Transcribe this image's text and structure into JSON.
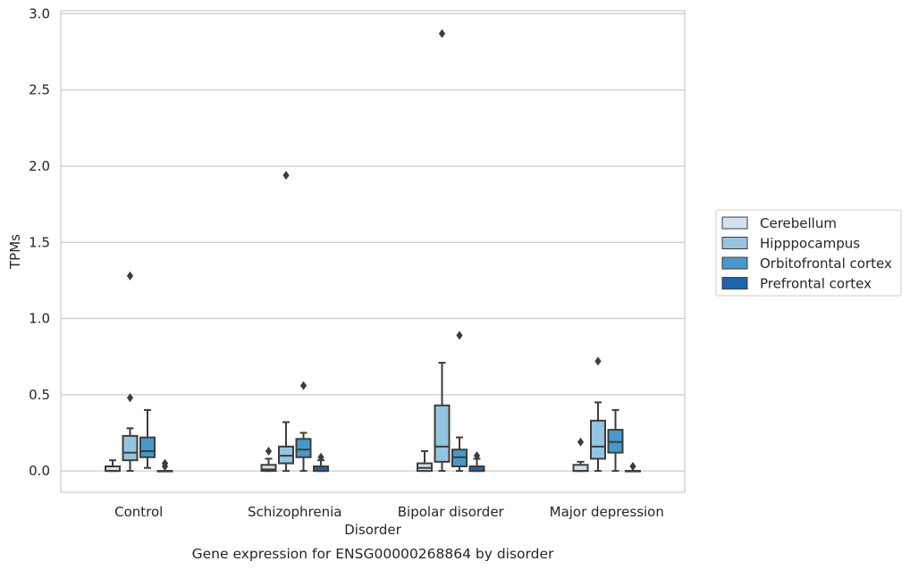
{
  "chart_data": {
    "type": "box",
    "caption": "Gene expression for ENSG00000268864 by disorder",
    "xlabel": "Disorder",
    "ylabel": "TPMs",
    "ylim": [
      -0.14,
      3.02
    ],
    "yticks": [
      "0.0",
      "0.5",
      "1.0",
      "1.5",
      "2.0",
      "2.5",
      "3.0"
    ],
    "grid": "horizontal",
    "legend_position": "right",
    "categories": [
      "Control",
      "Schizophrenia",
      "Bipolar disorder",
      "Major depression"
    ],
    "series": [
      {
        "name": "Cerebellum",
        "color": "#d0e1f2",
        "boxes": [
          {
            "min": 0.0,
            "q1": 0.0,
            "median": 0.0,
            "q3": 0.03,
            "max": 0.07,
            "outliers": []
          },
          {
            "min": 0.0,
            "q1": 0.0,
            "median": 0.01,
            "q3": 0.04,
            "max": 0.08,
            "outliers": [
              0.13
            ]
          },
          {
            "min": 0.0,
            "q1": 0.0,
            "median": 0.02,
            "q3": 0.05,
            "max": 0.13,
            "outliers": []
          },
          {
            "min": 0.0,
            "q1": 0.0,
            "median": 0.0,
            "q3": 0.04,
            "max": 0.06,
            "outliers": [
              0.19
            ]
          }
        ]
      },
      {
        "name": "Hipppocampus",
        "color": "#94c4df",
        "boxes": [
          {
            "min": 0.0,
            "q1": 0.07,
            "median": 0.12,
            "q3": 0.23,
            "max": 0.28,
            "outliers": [
              0.48,
              1.28
            ]
          },
          {
            "min": 0.0,
            "q1": 0.05,
            "median": 0.1,
            "q3": 0.16,
            "max": 0.32,
            "outliers": [
              1.94
            ]
          },
          {
            "min": 0.0,
            "q1": 0.06,
            "median": 0.16,
            "q3": 0.43,
            "max": 0.71,
            "outliers": [
              2.87
            ]
          },
          {
            "min": 0.0,
            "q1": 0.08,
            "median": 0.16,
            "q3": 0.33,
            "max": 0.45,
            "outliers": [
              0.72
            ]
          }
        ]
      },
      {
        "name": "Orbitofrontal cortex",
        "color": "#4a98c9",
        "boxes": [
          {
            "min": 0.02,
            "q1": 0.09,
            "median": 0.13,
            "q3": 0.22,
            "max": 0.4,
            "outliers": []
          },
          {
            "min": 0.0,
            "q1": 0.09,
            "median": 0.14,
            "q3": 0.21,
            "max": 0.25,
            "outliers": [
              0.56
            ]
          },
          {
            "min": 0.0,
            "q1": 0.03,
            "median": 0.09,
            "q3": 0.14,
            "max": 0.22,
            "outliers": [
              0.89
            ]
          },
          {
            "min": 0.0,
            "q1": 0.12,
            "median": 0.19,
            "q3": 0.27,
            "max": 0.4,
            "outliers": []
          }
        ]
      },
      {
        "name": "Prefrontal cortex",
        "color": "#2164ab",
        "boxes": [
          {
            "min": 0.0,
            "q1": 0.0,
            "median": 0.0,
            "q3": 0.0,
            "max": 0.0,
            "outliers": [
              0.03,
              0.05
            ]
          },
          {
            "min": 0.0,
            "q1": 0.0,
            "median": 0.0,
            "q3": 0.03,
            "max": 0.07,
            "outliers": [
              0.09
            ]
          },
          {
            "min": 0.0,
            "q1": 0.0,
            "median": 0.0,
            "q3": 0.03,
            "max": 0.08,
            "outliers": [
              0.1
            ]
          },
          {
            "min": 0.0,
            "q1": 0.0,
            "median": 0.0,
            "q3": 0.0,
            "max": 0.0,
            "outliers": [
              0.03
            ]
          }
        ]
      }
    ]
  }
}
